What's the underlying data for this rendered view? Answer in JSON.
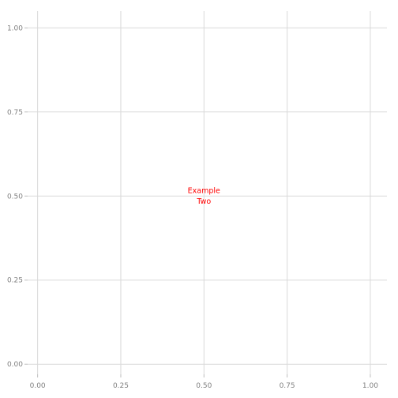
{
  "chart_data": {
    "type": "scatter",
    "title": "",
    "xlabel": "",
    "ylabel": "",
    "xlim": [
      -0.03,
      1.05
    ],
    "ylim": [
      -0.03,
      1.05
    ],
    "grid": true,
    "legend": "none",
    "x_ticks": [
      "0.00",
      "0.25",
      "0.50",
      "0.75",
      "1.00"
    ],
    "x_tick_values": [
      0,
      0.25,
      0.5,
      0.75,
      1
    ],
    "y_ticks": [
      "0.00",
      "0.25",
      "0.50",
      "0.75",
      "1.00"
    ],
    "y_tick_values": [
      0,
      0.25,
      0.5,
      0.75,
      1
    ],
    "annotations": [
      {
        "text_lines": [
          "Example",
          "Two"
        ],
        "x": 0.5,
        "y": 0.5,
        "color": "#ff0000"
      }
    ],
    "colors": {
      "grid": "#d9d9d9",
      "tick_label": "#7f7f7f",
      "annotation": "#ff0000"
    }
  }
}
